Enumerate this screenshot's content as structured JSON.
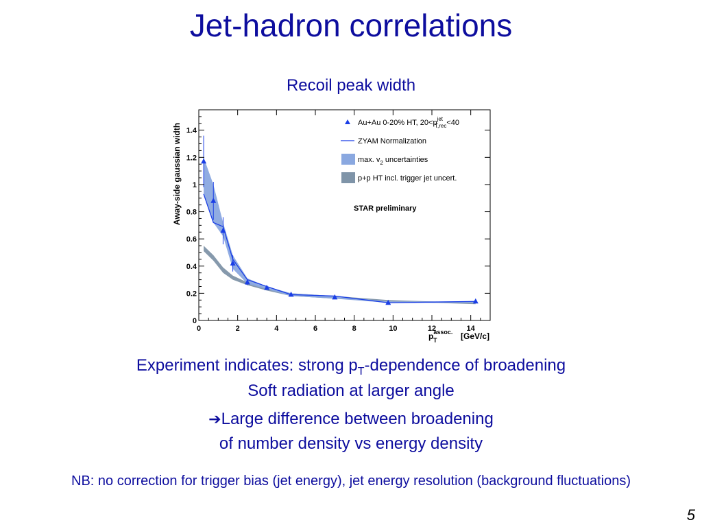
{
  "slide": {
    "title": "Jet-hadron correlations",
    "subtitle": "Recoil peak width",
    "line1_a": "Experiment indicates: strong p",
    "line1_sub": "T",
    "line1_b": "-dependence of broadening",
    "line2": "Soft radiation at larger angle",
    "arrow": "➔",
    "line3": "Large difference between broadening",
    "line4": "of number density vs energy density",
    "nb": "NB: no correction for trigger bias (jet energy), jet energy resolution (background fluctuations)",
    "page_number": "5"
  },
  "colors": {
    "text": "#0d0d9e",
    "auau": "#1a3ee6",
    "zyam": "#1a3ee6",
    "v2_band": "#8aa8e0",
    "pp_band": "#7f94a8"
  },
  "chart_data": {
    "type": "line",
    "title": "",
    "xlabel_main": "p",
    "xlabel_sup": "assoc.",
    "xlabel_sub": "T",
    "xlabel_unit": "[GeV/c]",
    "ylabel": "Away-side gaussian width",
    "xlim": [
      0,
      15
    ],
    "ylim": [
      0,
      1.55
    ],
    "xticks": [
      0,
      2,
      4,
      6,
      8,
      10,
      12,
      14
    ],
    "xtick_labels": [
      "0",
      "2",
      "4",
      "6",
      "8",
      "10",
      "12",
      "14"
    ],
    "yticks": [
      0,
      0.2,
      0.4,
      0.6,
      0.8,
      1.0,
      1.2,
      1.4
    ],
    "ytick_labels": [
      "0",
      "0.2",
      "0.4",
      "0.6",
      "0.8",
      "1",
      "1.2",
      "1.4"
    ],
    "annotation": "STAR preliminary",
    "legend": {
      "placement": "top-right",
      "entries": [
        {
          "main": "Au+Au 0-20% HT, 20<p",
          "sup": "jet",
          "sub": "T,rec",
          "tail": "<40"
        },
        {
          "main": "ZYAM Normalization"
        },
        {
          "main": "max. v",
          "sub": "2",
          "tail": " uncertainties"
        },
        {
          "main": "p+p HT incl. trigger jet uncert."
        }
      ]
    },
    "series": [
      {
        "name": "Au+Au 0-20% HT",
        "kind": "points",
        "x": [
          0.25,
          0.75,
          1.25,
          1.75,
          2.5,
          3.5,
          4.75,
          7.0,
          9.75,
          14.25
        ],
        "y": [
          1.17,
          0.88,
          0.66,
          0.42,
          0.28,
          0.24,
          0.19,
          0.17,
          0.13,
          0.14
        ],
        "yerr": [
          0.19,
          0.14,
          0.1,
          0.06,
          0.02,
          0.015,
          0.01,
          0.01,
          0.01,
          0.01
        ]
      },
      {
        "name": "ZYAM Normalization",
        "kind": "line",
        "x": [
          0.25,
          0.75,
          1.25,
          1.75,
          2.5,
          3.5,
          4.75,
          7.0,
          9.75,
          14.25
        ],
        "y": [
          0.93,
          0.72,
          0.69,
          0.45,
          0.3,
          0.25,
          0.19,
          0.18,
          0.13,
          0.14
        ]
      },
      {
        "name": "max. v2 uncertainties",
        "kind": "band",
        "x": [
          0.25,
          0.75,
          1.25,
          1.75,
          2.5,
          3.5,
          4.75,
          7.0,
          9.75,
          14.25
        ],
        "upper": [
          1.2,
          1.0,
          0.72,
          0.48,
          0.31,
          0.25,
          0.2,
          0.18,
          0.14,
          0.14
        ],
        "lower": [
          0.93,
          0.72,
          0.62,
          0.38,
          0.27,
          0.23,
          0.18,
          0.16,
          0.13,
          0.13
        ]
      },
      {
        "name": "p+p HT incl. trigger jet uncert.",
        "kind": "band",
        "x": [
          0.25,
          0.75,
          1.25,
          1.75,
          2.5,
          3.5,
          4.75,
          7.0,
          9.75,
          14.25
        ],
        "upper": [
          0.55,
          0.48,
          0.39,
          0.33,
          0.28,
          0.24,
          0.2,
          0.18,
          0.15,
          0.13
        ],
        "lower": [
          0.51,
          0.44,
          0.35,
          0.3,
          0.26,
          0.22,
          0.18,
          0.16,
          0.14,
          0.12
        ]
      }
    ]
  }
}
